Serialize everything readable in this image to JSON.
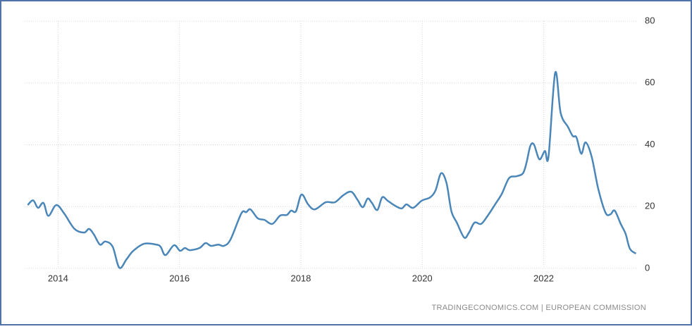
{
  "chart_data": {
    "type": "line",
    "source": "TRADINGECONOMICS.COM  |  EUROPEAN COMMISSION",
    "color": "#4a86b8",
    "grid": true,
    "y_axis_side": "right",
    "xlim": [
      2013.45,
      2023.55
    ],
    "xticks": [
      2014,
      2016,
      2018,
      2020,
      2022
    ],
    "ylim": [
      0,
      80
    ],
    "yticks": [
      0,
      20,
      40,
      60,
      80
    ],
    "x": [
      2013.5,
      2013.59,
      2013.67,
      2013.76,
      2013.84,
      2013.97,
      2014.1,
      2014.27,
      2014.43,
      2014.51,
      2014.59,
      2014.69,
      2014.78,
      2014.9,
      2015.01,
      2015.13,
      2015.24,
      2015.42,
      2015.62,
      2015.69,
      2015.77,
      2015.91,
      2016.01,
      2016.09,
      2016.17,
      2016.33,
      2016.43,
      2016.52,
      2016.64,
      2016.73,
      2016.84,
      2017.02,
      2017.1,
      2017.17,
      2017.29,
      2017.4,
      2017.53,
      2017.66,
      2017.77,
      2017.84,
      2017.92,
      2018.01,
      2018.12,
      2018.23,
      2018.41,
      2018.56,
      2018.7,
      2018.83,
      2018.93,
      2019.02,
      2019.1,
      2019.17,
      2019.26,
      2019.34,
      2019.43,
      2019.55,
      2019.66,
      2019.74,
      2019.85,
      2019.99,
      2020.13,
      2020.22,
      2020.31,
      2020.4,
      2020.48,
      2020.57,
      2020.69,
      2020.77,
      2020.86,
      2020.97,
      2021.08,
      2021.2,
      2021.31,
      2021.43,
      2021.55,
      2021.66,
      2021.72,
      2021.78,
      2021.84,
      2021.93,
      2022.02,
      2022.08,
      2022.19,
      2022.28,
      2022.4,
      2022.48,
      2022.54,
      2022.62,
      2022.69,
      2022.79,
      2022.9,
      2023.02,
      2023.1,
      2023.17,
      2023.27,
      2023.35,
      2023.42,
      2023.52
    ],
    "values": [
      20.5,
      22,
      19.6,
      21.2,
      17,
      20.5,
      17.8,
      12.8,
      11.6,
      12.8,
      11,
      7.7,
      8.7,
      7,
      0.2,
      3,
      5.7,
      8,
      7.7,
      7,
      4.3,
      7.5,
      5.7,
      6.6,
      5.9,
      6.6,
      8.2,
      7.3,
      7.7,
      7.3,
      9.3,
      17.8,
      18.2,
      19.1,
      16.2,
      15.7,
      14.4,
      17.1,
      17.3,
      18.7,
      18.5,
      23.9,
      20.7,
      19.1,
      21.4,
      21.4,
      23.7,
      24.8,
      22.3,
      19.8,
      22.6,
      21.2,
      18.9,
      23,
      21.9,
      20.3,
      19.4,
      20.7,
      19.6,
      21.9,
      23,
      25.3,
      30.8,
      27.6,
      18.5,
      14.8,
      10,
      11.6,
      14.8,
      14.4,
      17.1,
      20.7,
      24.1,
      29.2,
      29.8,
      30.8,
      34.4,
      39.6,
      40.1,
      35.3,
      38,
      36.2,
      63.3,
      50.3,
      45.8,
      42.8,
      42.4,
      37.1,
      40.8,
      36.2,
      25.7,
      18,
      17.5,
      18.7,
      14.4,
      11.2,
      6.4,
      4.8
    ]
  }
}
